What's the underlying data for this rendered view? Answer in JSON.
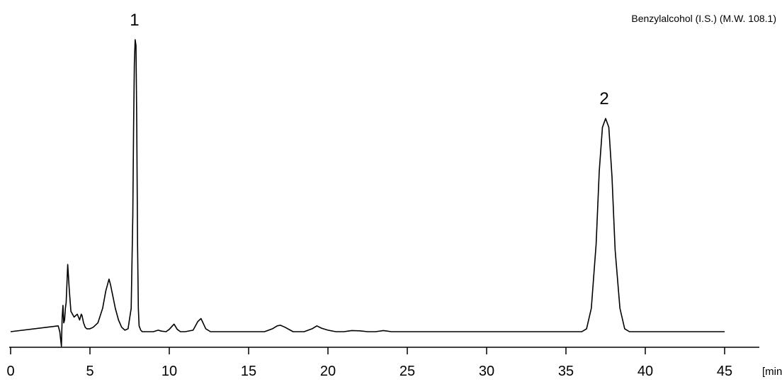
{
  "chart_data": {
    "type": "line",
    "xlabel": "[min]",
    "ylabel": "",
    "xlim": [
      0,
      47
    ],
    "xticks": [
      0,
      5,
      10,
      15,
      20,
      25,
      30,
      35,
      40,
      45
    ],
    "x_tick_labels": [
      "0",
      "5",
      "10",
      "15",
      "20",
      "25",
      "30",
      "35",
      "40",
      "45"
    ],
    "ylim": [
      -0.05,
      1.04
    ],
    "grid": false,
    "annotation": "Benzylalcohol (I.S.) (M.W. 108.1)",
    "peaks": [
      {
        "label": "1",
        "x": 7.9,
        "y": 1.0
      },
      {
        "label": "2",
        "x": 37.5,
        "y": 0.73
      }
    ],
    "series": [
      {
        "color": "#000000",
        "x": [
          0.0,
          3.0,
          3.1,
          3.2,
          3.25,
          3.3,
          3.35,
          3.4,
          3.45,
          3.5,
          3.6,
          3.7,
          3.8,
          4.0,
          4.2,
          4.35,
          4.45,
          4.5,
          4.6,
          4.7,
          4.8,
          5.0,
          5.2,
          5.5,
          5.8,
          6.0,
          6.2,
          6.3,
          6.45,
          6.6,
          6.8,
          7.0,
          7.2,
          7.4,
          7.6,
          7.7,
          7.75,
          7.8,
          7.85,
          7.9,
          7.95,
          8.0,
          8.05,
          8.1,
          8.2,
          8.3,
          8.5,
          9.0,
          9.3,
          9.5,
          9.8,
          10.0,
          10.3,
          10.5,
          10.7,
          11.0,
          11.5,
          11.8,
          12.0,
          12.3,
          12.6,
          13.0,
          16.0,
          16.5,
          16.8,
          17.0,
          17.3,
          17.8,
          18.5,
          19.0,
          19.3,
          19.6,
          20.0,
          20.5,
          21.0,
          21.5,
          22.0,
          22.5,
          23.0,
          23.5,
          24.0,
          25.0,
          36.0,
          36.3,
          36.6,
          36.9,
          37.1,
          37.3,
          37.5,
          37.7,
          37.9,
          38.1,
          38.4,
          38.7,
          39.0,
          45.0
        ],
        "values": [
          0.0,
          0.02,
          0.0,
          -0.05,
          0.05,
          0.09,
          0.03,
          0.04,
          0.08,
          0.1,
          0.23,
          0.14,
          0.07,
          0.05,
          0.06,
          0.04,
          0.06,
          0.055,
          0.03,
          0.015,
          0.01,
          0.01,
          0.015,
          0.03,
          0.08,
          0.14,
          0.18,
          0.16,
          0.12,
          0.08,
          0.04,
          0.015,
          0.005,
          0.01,
          0.08,
          0.4,
          0.7,
          0.92,
          1.0,
          0.98,
          0.7,
          0.3,
          0.08,
          0.02,
          0.005,
          0.0,
          0.0,
          0.0,
          0.005,
          0.002,
          0.0,
          0.008,
          0.026,
          0.008,
          0.0,
          0.0,
          0.005,
          0.035,
          0.045,
          0.01,
          0.0,
          0.0,
          0.0,
          0.01,
          0.02,
          0.022,
          0.015,
          0.0,
          0.0,
          0.01,
          0.02,
          0.012,
          0.005,
          0.0,
          0.0,
          0.004,
          0.003,
          0.0,
          0.0,
          0.004,
          0.0,
          0.0,
          0.0,
          0.01,
          0.08,
          0.3,
          0.55,
          0.7,
          0.73,
          0.7,
          0.53,
          0.28,
          0.08,
          0.01,
          0.0,
          0.0
        ]
      }
    ]
  }
}
